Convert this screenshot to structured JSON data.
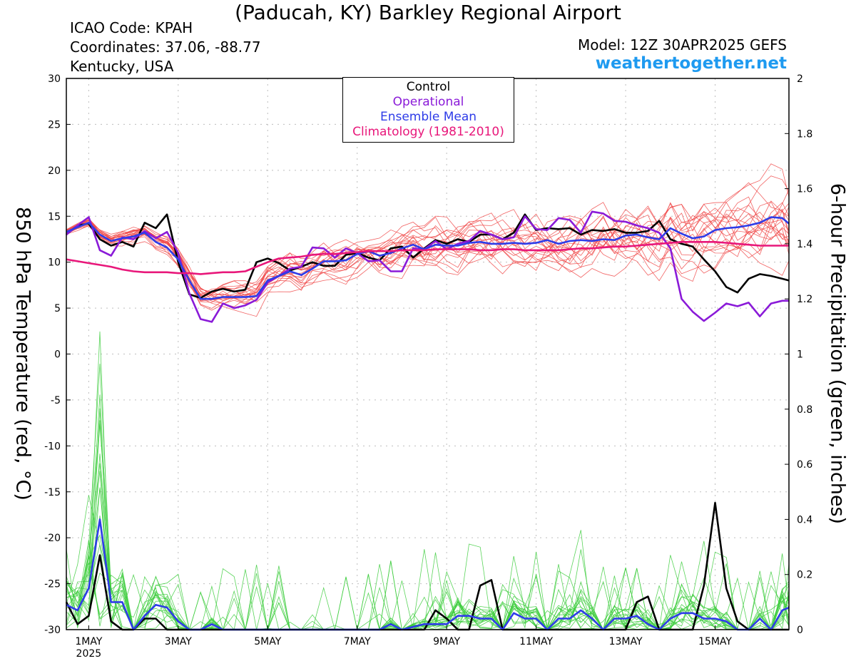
{
  "header": {
    "title": "(Paducah, KY) Barkley Regional Airport",
    "icao": "ICAO Code: KPAH",
    "coordinates": "Coordinates: 37.06, -88.77",
    "location": "Kentucky, USA",
    "model": "Model: 12Z 30APR2025 GEFS",
    "site": "weathertogether.net"
  },
  "chart_data": {
    "type": "line",
    "title": "(Paducah, KY) Barkley Regional Airport",
    "ylabel_left": "850 hPa Temperature (red, °C)",
    "ylabel_right": "6-hour Precipitation (green, inches)",
    "ylim_left": [
      -30,
      30
    ],
    "ylim_right": [
      0,
      2
    ],
    "yticks_left": [
      "30",
      "25",
      "20",
      "15",
      "10",
      "5",
      "0",
      "-5",
      "-10",
      "-15",
      "-20",
      "-25",
      "-30"
    ],
    "yticks_right": [
      "2",
      "1.8",
      "1.6",
      "1.4",
      "1.2",
      "1",
      "0.8",
      "0.6",
      "0.4",
      "0.2",
      "0"
    ],
    "xlim_days": [
      0.5,
      16.65
    ],
    "xticks": [
      {
        "day": 1,
        "label": "1MAY",
        "sub": "2025"
      },
      {
        "day": 3,
        "label": "3MAY",
        "sub": ""
      },
      {
        "day": 5,
        "label": "5MAY",
        "sub": ""
      },
      {
        "day": 7,
        "label": "7MAY",
        "sub": ""
      },
      {
        "day": 9,
        "label": "9MAY",
        "sub": ""
      },
      {
        "day": 11,
        "label": "11MAY",
        "sub": ""
      },
      {
        "day": 13,
        "label": "13MAY",
        "sub": ""
      },
      {
        "day": 15,
        "label": "15MAY",
        "sub": ""
      }
    ],
    "grid": true,
    "legend": {
      "placement": "top-center",
      "items": [
        {
          "label": "Control",
          "color": "#000000"
        },
        {
          "label": "Operational",
          "color": "#8a1ad8"
        },
        {
          "label": "Ensemble Mean",
          "color": "#2e3ce8"
        },
        {
          "label": "Climatology (1981-2010)",
          "color": "#e8177a"
        }
      ]
    },
    "colors": {
      "members_temp": "#f04848",
      "members_precip": "#3ccc3c",
      "control": "#000000",
      "operational": "#8a1ad8",
      "mean": "#2e3ce8",
      "climatology": "#e8177a"
    },
    "temperature": {
      "x_days": [
        0.5,
        0.75,
        1.0,
        1.25,
        1.5,
        1.75,
        2.0,
        2.25,
        2.5,
        2.75,
        3.0,
        3.25,
        3.5,
        3.75,
        4.0,
        4.25,
        4.5,
        4.75,
        5.0,
        5.25,
        5.5,
        5.75,
        6.0,
        6.25,
        6.5,
        6.75,
        7.0,
        7.25,
        7.5,
        7.75,
        8.0,
        8.25,
        8.5,
        8.75,
        9.0,
        9.25,
        9.5,
        9.75,
        10.0,
        10.25,
        10.5,
        10.75,
        11.0,
        11.25,
        11.5,
        11.75,
        12.0,
        12.25,
        12.5,
        12.75,
        13.0,
        13.25,
        13.5,
        13.75,
        14.0,
        14.25,
        14.5,
        14.75,
        15.0,
        15.25,
        15.5,
        15.75,
        16.0,
        16.25,
        16.5,
        16.65
      ],
      "series": [
        {
          "name": "Control",
          "values": [
            13.0,
            14.0,
            14.2,
            12.5,
            11.8,
            12.2,
            11.7,
            14.3,
            13.7,
            15.2,
            10.0,
            6.5,
            6.1,
            6.8,
            7.1,
            6.8,
            7.0,
            10.0,
            10.4,
            9.9,
            9.1,
            9.5,
            10.0,
            9.6,
            9.6,
            10.8,
            11.0,
            10.5,
            10.2,
            11.5,
            11.7,
            10.5,
            11.5,
            12.4,
            12.0,
            12.5,
            12.2,
            13.0,
            13.0,
            12.5,
            13.2,
            15.2,
            13.5,
            13.7,
            13.6,
            13.7,
            13.0,
            13.5,
            13.4,
            13.6,
            13.2,
            13.2,
            13.4,
            14.5,
            12.5,
            12.0,
            11.7,
            10.3,
            9.0,
            7.3,
            6.7,
            8.2,
            8.7,
            8.5,
            8.2,
            8.0
          ]
        },
        {
          "name": "Operational",
          "values": [
            13.0,
            14.0,
            14.9,
            11.3,
            10.7,
            12.7,
            12.5,
            13.4,
            12.6,
            13.3,
            11.0,
            6.6,
            3.8,
            3.5,
            5.5,
            5.0,
            5.3,
            5.9,
            7.8,
            8.5,
            9.3,
            9.5,
            11.6,
            11.5,
            10.5,
            11.5,
            11.0,
            10.1,
            10.2,
            9.0,
            9.0,
            11.5,
            11.4,
            12.3,
            11.4,
            12.0,
            12.3,
            13.4,
            13.0,
            12.5,
            12.7,
            15.0,
            13.6,
            13.5,
            14.8,
            14.6,
            13.2,
            15.5,
            15.3,
            14.5,
            14.4,
            14.0,
            13.7,
            13.2,
            11.5,
            6.0,
            4.6,
            3.6,
            4.5,
            5.5,
            5.2,
            5.6,
            4.1,
            5.5,
            5.8,
            5.8
          ]
        },
        {
          "name": "Ensemble Mean",
          "values": [
            13.3,
            13.8,
            14.3,
            13.0,
            12.3,
            12.6,
            12.8,
            13.2,
            12.2,
            11.6,
            10.3,
            8.0,
            6.0,
            6.0,
            6.2,
            6.2,
            6.2,
            6.3,
            8.0,
            8.5,
            9.0,
            8.6,
            9.3,
            10.1,
            10.1,
            10.2,
            10.9,
            11.2,
            10.7,
            11.0,
            11.5,
            11.9,
            11.4,
            11.9,
            11.8,
            11.8,
            12.1,
            12.2,
            12.0,
            12.0,
            12.1,
            12.0,
            12.1,
            12.4,
            12.0,
            12.3,
            12.4,
            12.3,
            12.5,
            12.4,
            12.9,
            13.0,
            12.7,
            12.5,
            13.7,
            13.1,
            12.6,
            12.8,
            13.5,
            13.7,
            13.8,
            14.0,
            14.3,
            14.9,
            14.8,
            14.2
          ]
        },
        {
          "name": "Climatology (1981-2010)",
          "values": [
            10.3,
            10.1,
            9.9,
            9.7,
            9.5,
            9.2,
            9.0,
            8.9,
            8.9,
            8.9,
            8.8,
            8.8,
            8.7,
            8.8,
            8.9,
            8.9,
            9.0,
            9.5,
            10.0,
            10.4,
            10.5,
            10.6,
            10.8,
            10.9,
            10.9,
            11.0,
            11.1,
            11.2,
            11.2,
            11.2,
            11.3,
            11.3,
            11.3,
            11.4,
            11.4,
            11.4,
            11.4,
            11.3,
            11.3,
            11.4,
            11.4,
            11.3,
            11.3,
            11.3,
            11.3,
            11.4,
            11.5,
            11.5,
            11.6,
            11.7,
            11.7,
            11.8,
            11.9,
            12.0,
            12.1,
            12.2,
            12.2,
            12.2,
            12.2,
            12.1,
            12.0,
            11.9,
            11.8,
            11.8,
            11.8,
            11.8
          ]
        }
      ]
    },
    "precipitation": {
      "x_days": [
        0.5,
        0.75,
        1.0,
        1.25,
        1.5,
        1.75,
        2.0,
        2.25,
        2.5,
        2.75,
        3.0,
        3.25,
        3.5,
        3.75,
        4.0,
        4.25,
        4.5,
        4.75,
        5.0,
        5.25,
        5.5,
        5.75,
        6.0,
        6.25,
        6.5,
        6.75,
        7.0,
        7.25,
        7.5,
        7.75,
        8.0,
        8.25,
        8.5,
        8.75,
        9.0,
        9.25,
        9.5,
        9.75,
        10.0,
        10.25,
        10.5,
        10.75,
        11.0,
        11.25,
        11.5,
        11.75,
        12.0,
        12.25,
        12.5,
        12.75,
        13.0,
        13.25,
        13.5,
        13.75,
        14.0,
        14.25,
        14.5,
        14.75,
        15.0,
        15.25,
        15.5,
        15.75,
        16.0,
        16.25,
        16.5,
        16.65
      ],
      "series": [
        {
          "name": "Control",
          "values": [
            0.1,
            0.02,
            0.05,
            0.27,
            0.03,
            0.0,
            0.0,
            0.04,
            0.04,
            0.0,
            0.0,
            0.0,
            0.0,
            0.0,
            0.0,
            0.0,
            0.0,
            0.0,
            0.0,
            0.0,
            0.0,
            0.0,
            0.0,
            0.0,
            0.0,
            0.0,
            0.0,
            0.0,
            0.0,
            0.0,
            0.0,
            0.0,
            0.0,
            0.07,
            0.04,
            0.0,
            0.0,
            0.16,
            0.18,
            0.0,
            0.0,
            0.0,
            0.0,
            0.0,
            0.0,
            0.0,
            0.0,
            0.0,
            0.0,
            0.0,
            0.0,
            0.1,
            0.12,
            0.0,
            0.0,
            0.0,
            0.0,
            0.16,
            0.46,
            0.15,
            0.03,
            0.0,
            0.0,
            0.0,
            0.0,
            0.0
          ]
        },
        {
          "name": "Ensemble Mean",
          "values": [
            0.09,
            0.07,
            0.15,
            0.4,
            0.1,
            0.1,
            0.0,
            0.05,
            0.09,
            0.08,
            0.03,
            0.0,
            0.0,
            0.02,
            0.0,
            0.0,
            0.0,
            0.0,
            0.0,
            0.0,
            0.0,
            0.0,
            0.0,
            0.0,
            0.0,
            0.0,
            0.0,
            0.0,
            0.0,
            0.02,
            0.0,
            0.01,
            0.02,
            0.02,
            0.02,
            0.05,
            0.05,
            0.04,
            0.04,
            0.0,
            0.06,
            0.04,
            0.04,
            0.0,
            0.04,
            0.04,
            0.07,
            0.04,
            0.0,
            0.04,
            0.04,
            0.05,
            0.02,
            0.0,
            0.04,
            0.06,
            0.06,
            0.04,
            0.04,
            0.03,
            0.0,
            0.0,
            0.04,
            0.0,
            0.07,
            0.08
          ]
        }
      ]
    }
  }
}
